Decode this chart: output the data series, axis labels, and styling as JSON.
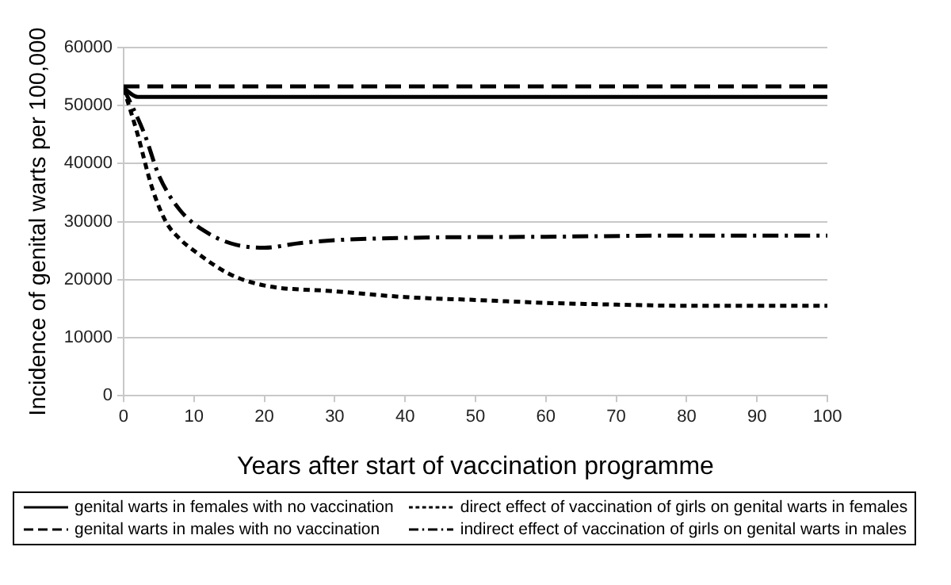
{
  "chart_data": {
    "type": "line",
    "xlabel": "Years after start of vaccination programme",
    "ylabel": "Incidence of genital warts per 100,000",
    "xlim": [
      0,
      100
    ],
    "xticks": [
      0,
      10,
      20,
      30,
      40,
      50,
      60,
      70,
      80,
      90,
      100
    ],
    "ylim": [
      0,
      60000
    ],
    "yticks": [
      0,
      10000,
      20000,
      30000,
      40000,
      50000,
      60000
    ],
    "grid": "y",
    "legend": "bottom",
    "marker": "none",
    "series": [
      {
        "name": "genital warts in females with no vaccination",
        "color": "#000000",
        "line_style": "solid",
        "x": [
          0,
          2,
          100
        ],
        "values": [
          53000,
          51500,
          51500
        ]
      },
      {
        "name": "direct effect of vaccination of girls on genital warts in females",
        "color": "#000000",
        "line_style": "dotted",
        "x": [
          0,
          2,
          4,
          6,
          8,
          10,
          15,
          20,
          30,
          40,
          50,
          60,
          70,
          80,
          90,
          100
        ],
        "values": [
          53000,
          45000,
          36000,
          30000,
          27000,
          25000,
          21000,
          19000,
          18000,
          17000,
          16500,
          16000,
          15700,
          15500,
          15500,
          15500
        ]
      },
      {
        "name": "genital warts in males with no vaccination",
        "color": "#000000",
        "line_style": "dashed",
        "x": [
          0,
          100
        ],
        "values": [
          53300,
          53300
        ]
      },
      {
        "name": "indirect effect of vaccination of girls on genital warts in males",
        "color": "#000000",
        "line_style": "dashdot",
        "x": [
          0,
          3,
          5,
          8,
          12,
          16,
          20,
          25,
          30,
          40,
          60,
          80,
          100
        ],
        "values": [
          53000,
          45000,
          38000,
          32000,
          28000,
          26000,
          25500,
          26300,
          26800,
          27200,
          27400,
          27600,
          27600
        ]
      }
    ]
  }
}
